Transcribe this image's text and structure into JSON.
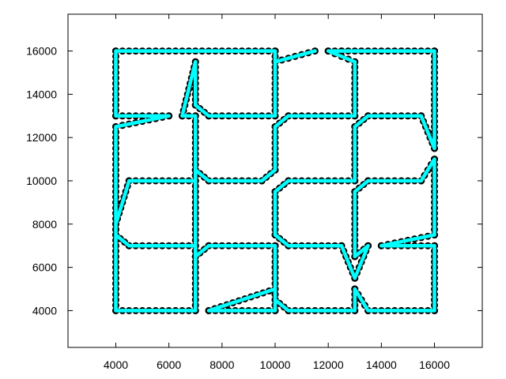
{
  "chart_data": {
    "type": "line",
    "title": "",
    "xlabel": "",
    "ylabel": "",
    "xlim": [
      2200,
      17800
    ],
    "ylim": [
      2300,
      17700
    ],
    "grid": false,
    "legend": "none",
    "x_ticks": [
      "4000",
      "6000",
      "8000",
      "10000",
      "12000",
      "14000",
      "16000"
    ],
    "y_ticks": [
      "4000",
      "6000",
      "8000",
      "10000",
      "12000",
      "14000",
      "16000"
    ],
    "series": [
      {
        "color": "#00ffff",
        "marker": "circle",
        "marker_color": "#000000",
        "paths": [
          [
            [
              4000,
              4000
            ],
            [
              7000,
              4000
            ],
            [
              7000,
              7000
            ],
            [
              4500,
              7000
            ],
            [
              4000,
              7500
            ],
            [
              4000,
              8000
            ],
            [
              4500,
              10000
            ],
            [
              7000,
              10000
            ],
            [
              7000,
              13000
            ],
            [
              6500,
              13000
            ],
            [
              7000,
              15500
            ],
            [
              7000,
              13500
            ],
            [
              7500,
              13000
            ],
            [
              10000,
              13000
            ],
            [
              10000,
              16000
            ],
            [
              4000,
              16000
            ],
            [
              4000,
              13000
            ],
            [
              6000,
              13000
            ],
            [
              4000,
              12500
            ],
            [
              4000,
              4000
            ]
          ],
          [
            [
              7500,
              4000
            ],
            [
              10000,
              5000
            ],
            [
              10000,
              4500
            ],
            [
              10500,
              4000
            ],
            [
              13000,
              4000
            ],
            [
              13000,
              5000
            ],
            [
              13500,
              4000
            ],
            [
              16000,
              4000
            ],
            [
              16000,
              7000
            ],
            [
              14000,
              7000
            ],
            [
              16000,
              7500
            ],
            [
              16000,
              11000
            ],
            [
              15500,
              10000
            ],
            [
              13500,
              10000
            ],
            [
              13000,
              9500
            ],
            [
              13000,
              6500
            ],
            [
              13500,
              7000
            ],
            [
              13000,
              5500
            ],
            [
              12500,
              7000
            ],
            [
              10500,
              7000
            ],
            [
              10000,
              7500
            ],
            [
              10000,
              9500
            ],
            [
              10500,
              10000
            ],
            [
              13000,
              10000
            ],
            [
              13000,
              12500
            ],
            [
              13500,
              13000
            ],
            [
              15500,
              13000
            ],
            [
              16000,
              11500
            ],
            [
              16000,
              16000
            ],
            [
              12500,
              16000
            ],
            [
              12000,
              16000
            ],
            [
              13000,
              15500
            ],
            [
              13000,
              13000
            ],
            [
              10500,
              13000
            ],
            [
              10000,
              12500
            ],
            [
              10000,
              10500
            ],
            [
              9500,
              10000
            ],
            [
              7500,
              10000
            ],
            [
              7000,
              10500
            ],
            [
              7000,
              6500
            ],
            [
              7500,
              7000
            ],
            [
              10000,
              7000
            ],
            [
              10000,
              6000
            ],
            [
              10000,
              4000
            ],
            [
              7500,
              4000
            ]
          ],
          [
            [
              10000,
              15500
            ],
            [
              11500,
              16000
            ]
          ]
        ]
      }
    ]
  }
}
